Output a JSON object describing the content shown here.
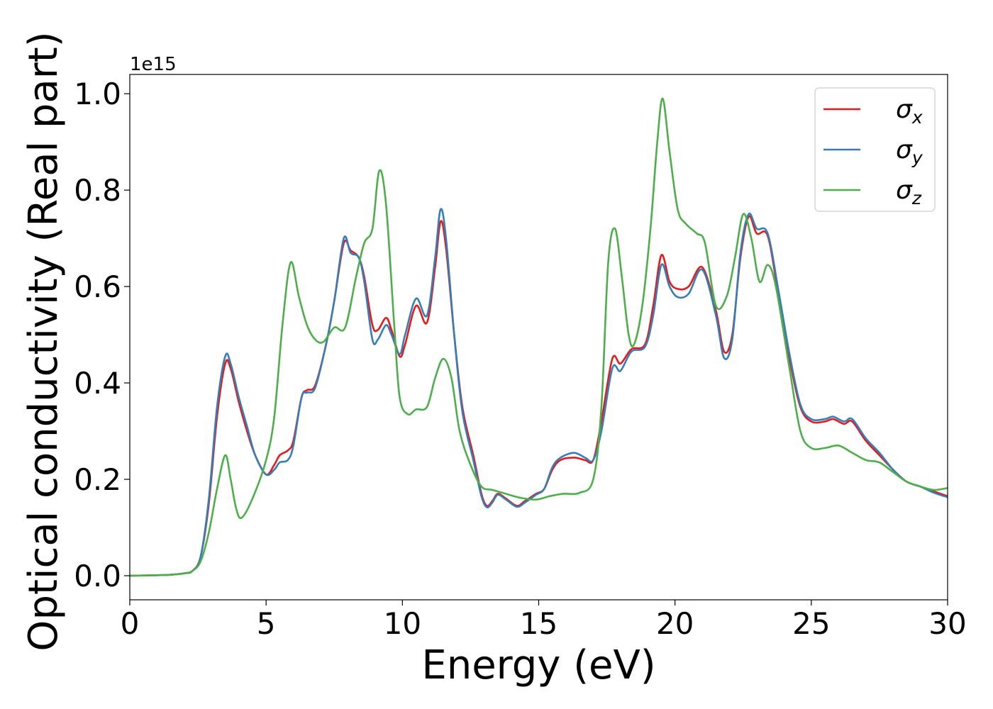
{
  "chart_data": {
    "type": "line",
    "title": "",
    "xlabel": "Energy (eV)",
    "ylabel": "Optical conductivity (Real part)",
    "offset_text": "1e15",
    "xlim": [
      0,
      30
    ],
    "ylim": [
      -0.05,
      1.04
    ],
    "x_ticks": [
      0,
      5,
      10,
      15,
      20,
      25,
      30
    ],
    "x_tick_labels": [
      "0",
      "5",
      "10",
      "15",
      "20",
      "25",
      "30"
    ],
    "y_ticks": [
      0.0,
      0.2,
      0.4,
      0.6,
      0.8,
      1.0
    ],
    "y_tick_labels": [
      "0.0",
      "0.2",
      "0.4",
      "0.6",
      "0.8",
      "1.0"
    ],
    "grid": false,
    "legend_position": "top-right",
    "series": [
      {
        "name": "σx",
        "legend_base": "σ",
        "legend_sub": "x",
        "color": "#e41a1c",
        "points": [
          [
            0,
            0
          ],
          [
            1,
            0.001
          ],
          [
            1.5,
            0.002
          ],
          [
            2,
            0.005
          ],
          [
            2.3,
            0.01
          ],
          [
            2.6,
            0.04
          ],
          [
            2.9,
            0.15
          ],
          [
            3.2,
            0.33
          ],
          [
            3.5,
            0.44
          ],
          [
            3.7,
            0.43
          ],
          [
            4,
            0.36
          ],
          [
            4.3,
            0.3
          ],
          [
            4.6,
            0.25
          ],
          [
            5,
            0.21
          ],
          [
            5.3,
            0.23
          ],
          [
            5.5,
            0.25
          ],
          [
            5.8,
            0.26
          ],
          [
            6,
            0.28
          ],
          [
            6.3,
            0.37
          ],
          [
            6.5,
            0.385
          ],
          [
            6.8,
            0.395
          ],
          [
            7.2,
            0.48
          ],
          [
            7.5,
            0.57
          ],
          [
            7.85,
            0.69
          ],
          [
            8.1,
            0.675
          ],
          [
            8.4,
            0.66
          ],
          [
            8.6,
            0.62
          ],
          [
            8.9,
            0.52
          ],
          [
            9.1,
            0.51
          ],
          [
            9.4,
            0.535
          ],
          [
            9.6,
            0.51
          ],
          [
            9.9,
            0.455
          ],
          [
            10.1,
            0.48
          ],
          [
            10.5,
            0.56
          ],
          [
            10.9,
            0.525
          ],
          [
            11.2,
            0.64
          ],
          [
            11.4,
            0.735
          ],
          [
            11.6,
            0.68
          ],
          [
            11.9,
            0.5
          ],
          [
            12.2,
            0.35
          ],
          [
            12.6,
            0.25
          ],
          [
            12.9,
            0.17
          ],
          [
            13.1,
            0.145
          ],
          [
            13.3,
            0.155
          ],
          [
            13.5,
            0.17
          ],
          [
            13.8,
            0.16
          ],
          [
            14.2,
            0.145
          ],
          [
            14.5,
            0.155
          ],
          [
            14.9,
            0.17
          ],
          [
            15.2,
            0.18
          ],
          [
            15.5,
            0.22
          ],
          [
            15.8,
            0.24
          ],
          [
            16.3,
            0.245
          ],
          [
            16.7,
            0.24
          ],
          [
            17,
            0.24
          ],
          [
            17.3,
            0.32
          ],
          [
            17.7,
            0.45
          ],
          [
            18,
            0.44
          ],
          [
            18.4,
            0.47
          ],
          [
            18.9,
            0.48
          ],
          [
            19.2,
            0.56
          ],
          [
            19.5,
            0.665
          ],
          [
            19.8,
            0.61
          ],
          [
            20.1,
            0.595
          ],
          [
            20.5,
            0.6
          ],
          [
            21,
            0.64
          ],
          [
            21.5,
            0.55
          ],
          [
            21.8,
            0.465
          ],
          [
            22.1,
            0.5
          ],
          [
            22.4,
            0.66
          ],
          [
            22.7,
            0.745
          ],
          [
            23,
            0.71
          ],
          [
            23.4,
            0.705
          ],
          [
            23.8,
            0.58
          ],
          [
            24.2,
            0.45
          ],
          [
            24.6,
            0.35
          ],
          [
            25,
            0.32
          ],
          [
            25.5,
            0.32
          ],
          [
            25.8,
            0.325
          ],
          [
            26.2,
            0.315
          ],
          [
            26.5,
            0.32
          ],
          [
            27,
            0.28
          ],
          [
            27.5,
            0.25
          ],
          [
            28,
            0.22
          ],
          [
            28.5,
            0.195
          ],
          [
            29,
            0.185
          ],
          [
            29.5,
            0.175
          ],
          [
            30,
            0.165
          ]
        ]
      },
      {
        "name": "σy",
        "legend_base": "σ",
        "legend_sub": "y",
        "color": "#377eb8",
        "points": [
          [
            0,
            0
          ],
          [
            1,
            0.001
          ],
          [
            1.5,
            0.002
          ],
          [
            2,
            0.005
          ],
          [
            2.3,
            0.01
          ],
          [
            2.6,
            0.04
          ],
          [
            2.9,
            0.16
          ],
          [
            3.2,
            0.35
          ],
          [
            3.5,
            0.455
          ],
          [
            3.7,
            0.44
          ],
          [
            4,
            0.37
          ],
          [
            4.3,
            0.31
          ],
          [
            4.6,
            0.25
          ],
          [
            5,
            0.21
          ],
          [
            5.3,
            0.22
          ],
          [
            5.5,
            0.235
          ],
          [
            5.8,
            0.24
          ],
          [
            6,
            0.27
          ],
          [
            6.3,
            0.37
          ],
          [
            6.5,
            0.38
          ],
          [
            6.8,
            0.39
          ],
          [
            7.2,
            0.48
          ],
          [
            7.5,
            0.57
          ],
          [
            7.85,
            0.7
          ],
          [
            8.1,
            0.67
          ],
          [
            8.4,
            0.66
          ],
          [
            8.6,
            0.61
          ],
          [
            8.9,
            0.49
          ],
          [
            9.1,
            0.49
          ],
          [
            9.4,
            0.52
          ],
          [
            9.6,
            0.5
          ],
          [
            9.9,
            0.46
          ],
          [
            10.1,
            0.5
          ],
          [
            10.5,
            0.575
          ],
          [
            10.9,
            0.54
          ],
          [
            11.2,
            0.66
          ],
          [
            11.4,
            0.76
          ],
          [
            11.6,
            0.7
          ],
          [
            11.9,
            0.5
          ],
          [
            12.2,
            0.34
          ],
          [
            12.6,
            0.24
          ],
          [
            12.9,
            0.165
          ],
          [
            13.1,
            0.142
          ],
          [
            13.3,
            0.152
          ],
          [
            13.5,
            0.168
          ],
          [
            13.8,
            0.158
          ],
          [
            14.2,
            0.143
          ],
          [
            14.5,
            0.152
          ],
          [
            14.9,
            0.168
          ],
          [
            15.2,
            0.18
          ],
          [
            15.5,
            0.225
          ],
          [
            15.8,
            0.245
          ],
          [
            16.3,
            0.255
          ],
          [
            16.7,
            0.245
          ],
          [
            17,
            0.24
          ],
          [
            17.3,
            0.3
          ],
          [
            17.7,
            0.43
          ],
          [
            18,
            0.425
          ],
          [
            18.4,
            0.465
          ],
          [
            18.9,
            0.475
          ],
          [
            19.2,
            0.54
          ],
          [
            19.5,
            0.645
          ],
          [
            19.8,
            0.6
          ],
          [
            20.1,
            0.578
          ],
          [
            20.5,
            0.585
          ],
          [
            21,
            0.635
          ],
          [
            21.5,
            0.54
          ],
          [
            21.8,
            0.452
          ],
          [
            22.1,
            0.49
          ],
          [
            22.4,
            0.67
          ],
          [
            22.7,
            0.75
          ],
          [
            23,
            0.72
          ],
          [
            23.4,
            0.71
          ],
          [
            23.8,
            0.59
          ],
          [
            24.2,
            0.46
          ],
          [
            24.6,
            0.355
          ],
          [
            25,
            0.325
          ],
          [
            25.5,
            0.325
          ],
          [
            25.8,
            0.33
          ],
          [
            26.2,
            0.32
          ],
          [
            26.5,
            0.325
          ],
          [
            27,
            0.285
          ],
          [
            27.5,
            0.255
          ],
          [
            28,
            0.22
          ],
          [
            28.5,
            0.195
          ],
          [
            29,
            0.185
          ],
          [
            29.5,
            0.172
          ],
          [
            30,
            0.163
          ]
        ]
      },
      {
        "name": "σz",
        "legend_base": "σ",
        "legend_sub": "z",
        "color": "#4daf4a",
        "points": [
          [
            0,
            0
          ],
          [
            1,
            0.001
          ],
          [
            1.5,
            0.002
          ],
          [
            2,
            0.005
          ],
          [
            2.3,
            0.01
          ],
          [
            2.6,
            0.03
          ],
          [
            2.9,
            0.09
          ],
          [
            3.2,
            0.18
          ],
          [
            3.5,
            0.25
          ],
          [
            3.7,
            0.2
          ],
          [
            3.9,
            0.14
          ],
          [
            4.1,
            0.12
          ],
          [
            4.5,
            0.16
          ],
          [
            5,
            0.24
          ],
          [
            5.3,
            0.33
          ],
          [
            5.6,
            0.52
          ],
          [
            5.9,
            0.65
          ],
          [
            6.2,
            0.58
          ],
          [
            6.5,
            0.52
          ],
          [
            6.8,
            0.49
          ],
          [
            7.1,
            0.485
          ],
          [
            7.5,
            0.515
          ],
          [
            7.9,
            0.515
          ],
          [
            8.3,
            0.62
          ],
          [
            8.6,
            0.69
          ],
          [
            8.9,
            0.72
          ],
          [
            9.15,
            0.84
          ],
          [
            9.4,
            0.77
          ],
          [
            9.7,
            0.52
          ],
          [
            9.9,
            0.37
          ],
          [
            10.2,
            0.335
          ],
          [
            10.5,
            0.345
          ],
          [
            10.9,
            0.35
          ],
          [
            11.2,
            0.41
          ],
          [
            11.5,
            0.45
          ],
          [
            11.8,
            0.41
          ],
          [
            12.1,
            0.3
          ],
          [
            12.5,
            0.23
          ],
          [
            12.9,
            0.185
          ],
          [
            13.3,
            0.178
          ],
          [
            13.8,
            0.17
          ],
          [
            14.3,
            0.162
          ],
          [
            14.9,
            0.158
          ],
          [
            15.4,
            0.165
          ],
          [
            15.9,
            0.17
          ],
          [
            16.5,
            0.172
          ],
          [
            17,
            0.2
          ],
          [
            17.3,
            0.35
          ],
          [
            17.55,
            0.65
          ],
          [
            17.8,
            0.72
          ],
          [
            18.05,
            0.62
          ],
          [
            18.3,
            0.5
          ],
          [
            18.5,
            0.48
          ],
          [
            18.8,
            0.56
          ],
          [
            19.1,
            0.72
          ],
          [
            19.35,
            0.9
          ],
          [
            19.55,
            0.99
          ],
          [
            19.8,
            0.88
          ],
          [
            20.1,
            0.76
          ],
          [
            20.4,
            0.73
          ],
          [
            20.8,
            0.71
          ],
          [
            21.1,
            0.69
          ],
          [
            21.5,
            0.56
          ],
          [
            21.9,
            0.58
          ],
          [
            22.2,
            0.66
          ],
          [
            22.5,
            0.75
          ],
          [
            22.8,
            0.7
          ],
          [
            23.1,
            0.61
          ],
          [
            23.4,
            0.645
          ],
          [
            23.7,
            0.6
          ],
          [
            24.2,
            0.43
          ],
          [
            24.6,
            0.3
          ],
          [
            25,
            0.265
          ],
          [
            25.5,
            0.265
          ],
          [
            26,
            0.27
          ],
          [
            26.5,
            0.255
          ],
          [
            27,
            0.24
          ],
          [
            27.5,
            0.235
          ],
          [
            28,
            0.215
          ],
          [
            28.5,
            0.195
          ],
          [
            29,
            0.185
          ],
          [
            29.5,
            0.178
          ],
          [
            30,
            0.182
          ]
        ]
      }
    ]
  }
}
